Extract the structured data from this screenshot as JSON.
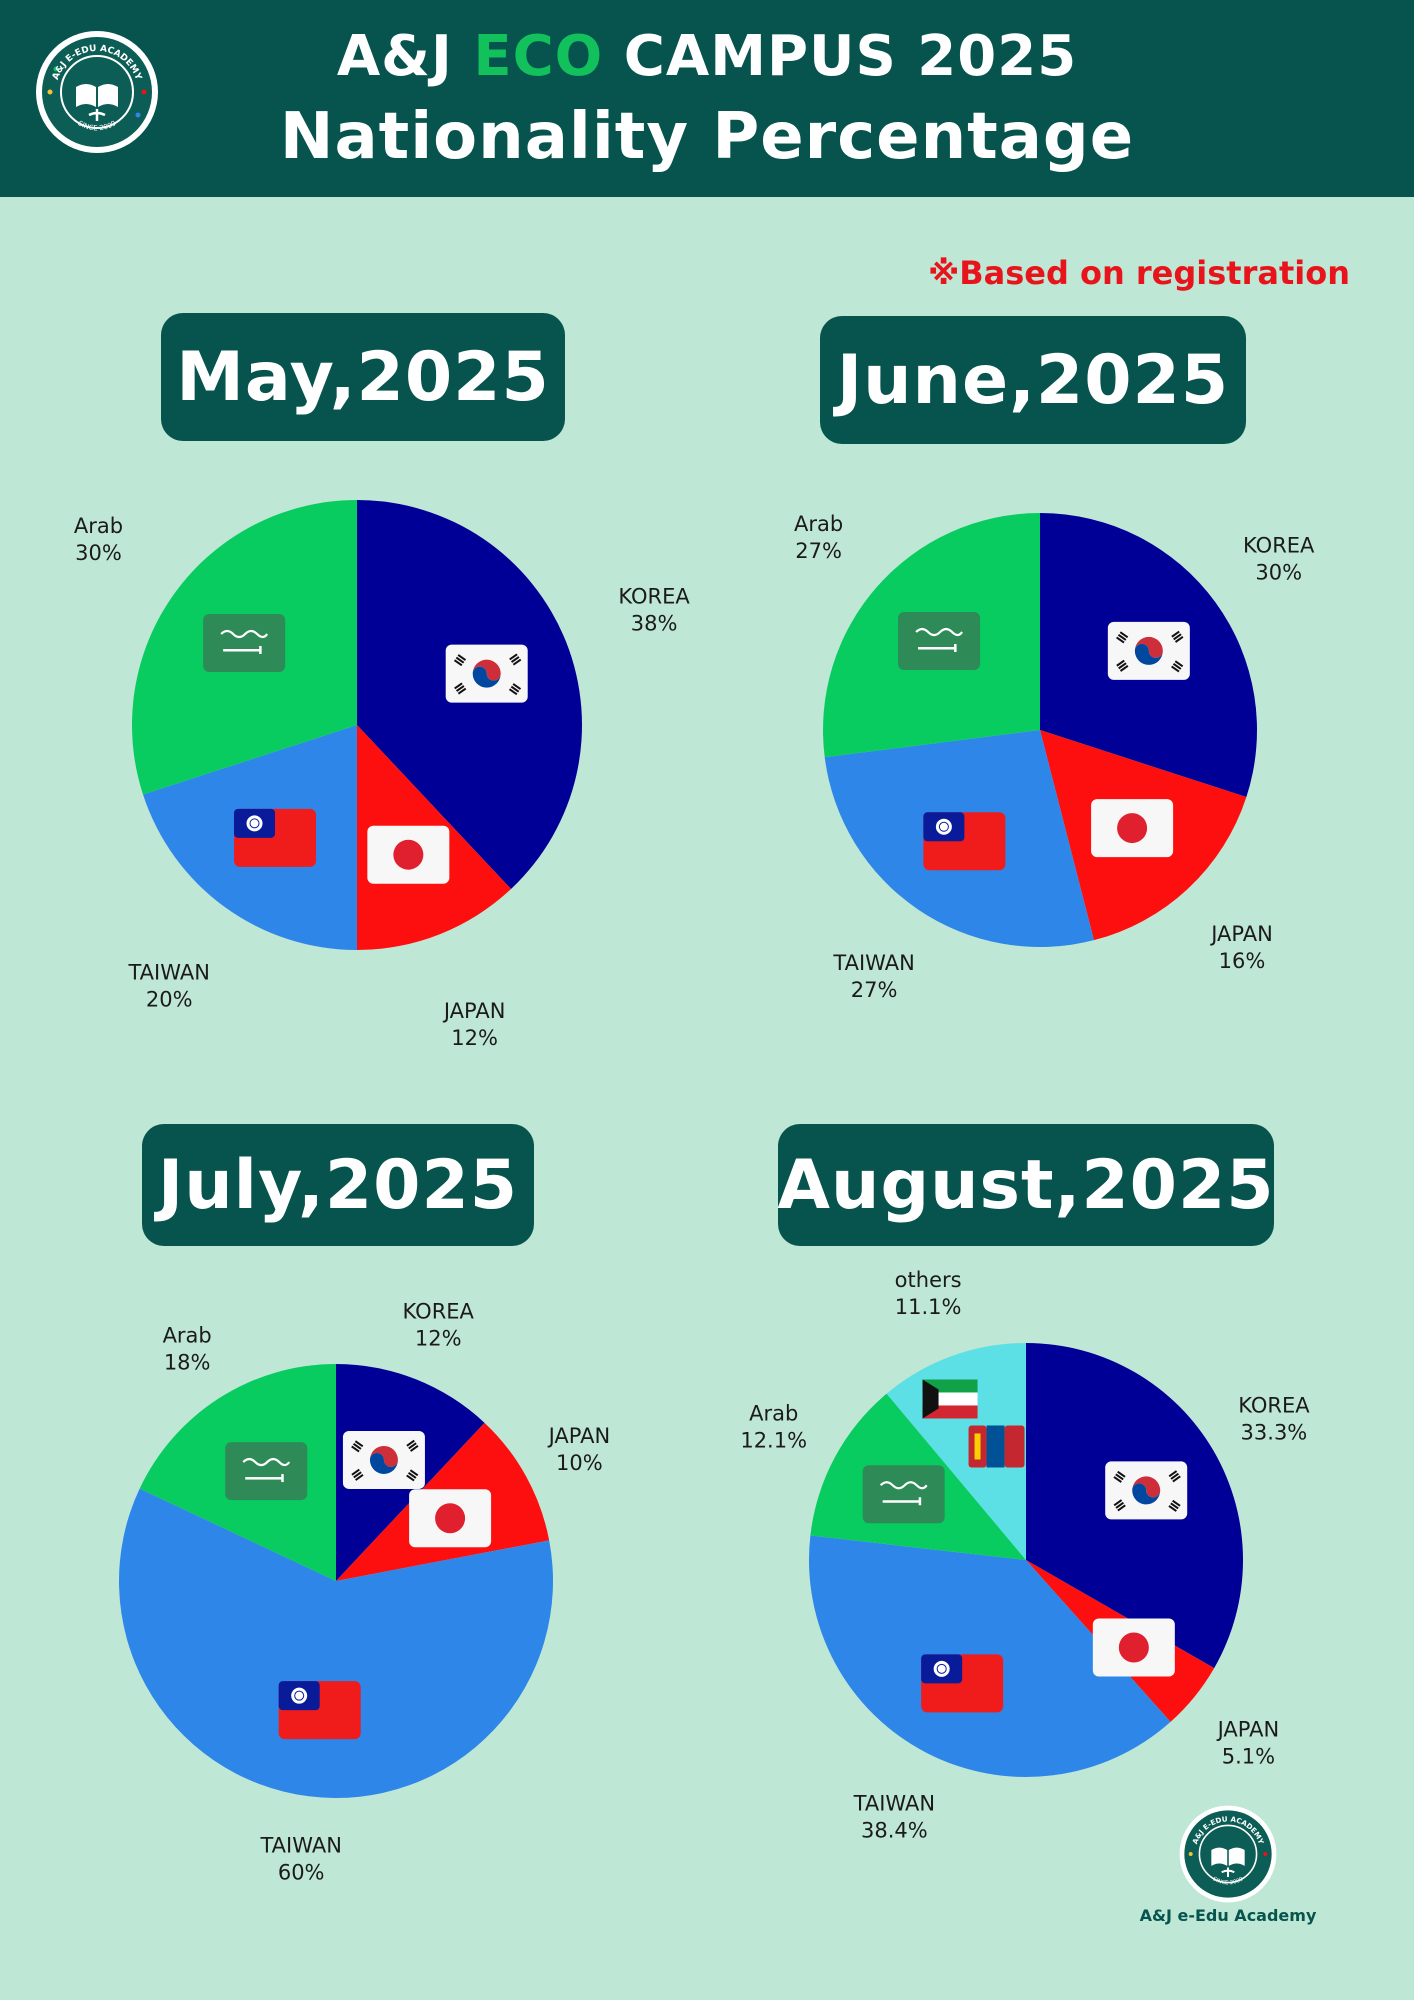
{
  "header": {
    "title_prefix": "A&J ",
    "title_accent": "ECO",
    "title_suffix": " CAMPUS 2025",
    "subtitle": "Nationality Percentage",
    "logo_top_text": "A&J E-EDU ACADEMY",
    "logo_bottom_text": "SINCE 2009"
  },
  "note": "※Based on registration",
  "footer": {
    "brand": "A&J e-Edu Academy",
    "logo_top_text": "A&J E-EDU ACADEMY",
    "logo_bottom_text": "SINCE 2009"
  },
  "colors": {
    "header_bg": "#06544d",
    "page_bg": "#bfe7d6",
    "accent_green": "#12c05c",
    "note_red": "#e8141b",
    "korea": "#000096",
    "japan": "#fd0f0f",
    "taiwan": "#2e86e8",
    "arab": "#08cc60",
    "others": "#5ce0e5"
  },
  "chart_data": [
    {
      "type": "pie",
      "title": "May,2025",
      "slices": [
        {
          "label": "KOREA",
          "value": 38,
          "value_label": "38%",
          "color": "#000096",
          "flag": "korea-flag-icon"
        },
        {
          "label": "JAPAN",
          "value": 12,
          "value_label": "12%",
          "color": "#fd0f0f",
          "flag": "japan-flag-icon"
        },
        {
          "label": "TAIWAN",
          "value": 20,
          "value_label": "20%",
          "color": "#2e86e8",
          "flag": "taiwan-flag-icon"
        },
        {
          "label": "Arab",
          "value": 30,
          "value_label": "30%",
          "color": "#08cc60",
          "flag": "saudi-flag-icon"
        }
      ]
    },
    {
      "type": "pie",
      "title": "June,2025",
      "slices": [
        {
          "label": "KOREA",
          "value": 30,
          "value_label": "30%",
          "color": "#000096",
          "flag": "korea-flag-icon"
        },
        {
          "label": "JAPAN",
          "value": 16,
          "value_label": "16%",
          "color": "#fd0f0f",
          "flag": "japan-flag-icon"
        },
        {
          "label": "TAIWAN",
          "value": 27,
          "value_label": "27%",
          "color": "#2e86e8",
          "flag": "taiwan-flag-icon"
        },
        {
          "label": "Arab",
          "value": 27,
          "value_label": "27%",
          "color": "#08cc60",
          "flag": "saudi-flag-icon"
        }
      ]
    },
    {
      "type": "pie",
      "title": "July,2025",
      "slices": [
        {
          "label": "KOREA",
          "value": 12,
          "value_label": "12%",
          "color": "#000096",
          "flag": "korea-flag-icon"
        },
        {
          "label": "JAPAN",
          "value": 10,
          "value_label": "10%",
          "color": "#fd0f0f",
          "flag": "japan-flag-icon"
        },
        {
          "label": "TAIWAN",
          "value": 60,
          "value_label": "60%",
          "color": "#2e86e8",
          "flag": "taiwan-flag-icon"
        },
        {
          "label": "Arab",
          "value": 18,
          "value_label": "18%",
          "color": "#08cc60",
          "flag": "saudi-flag-icon"
        }
      ]
    },
    {
      "type": "pie",
      "title": "August,2025",
      "slices": [
        {
          "label": "KOREA",
          "value": 33.3,
          "value_label": "33.3%",
          "color": "#000096",
          "flag": "korea-flag-icon"
        },
        {
          "label": "JAPAN",
          "value": 5.1,
          "value_label": "5.1%",
          "color": "#fd0f0f",
          "flag": "japan-flag-icon"
        },
        {
          "label": "TAIWAN",
          "value": 38.4,
          "value_label": "38.4%",
          "color": "#2e86e8",
          "flag": "taiwan-flag-icon"
        },
        {
          "label": "Arab",
          "value": 12.1,
          "value_label": "12.1%",
          "color": "#08cc60",
          "flag": "saudi-flag-icon"
        },
        {
          "label": "others",
          "value": 11.1,
          "value_label": "11.1%",
          "color": "#5ce0e5",
          "flag": "kuwait-mongolia-flag-icons"
        }
      ]
    }
  ]
}
